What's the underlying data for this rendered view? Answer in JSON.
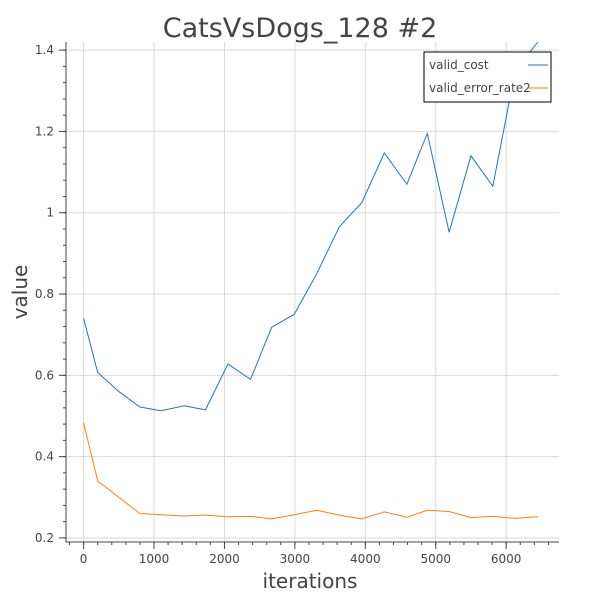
{
  "chart_data": {
    "type": "line",
    "title": "CatsVsDogs_128 #2",
    "xlabel": "iterations",
    "ylabel": "value",
    "xlim": [
      -250,
      6750
    ],
    "ylim": [
      0.19,
      1.42
    ],
    "x_ticks": [
      0,
      1000,
      2000,
      3000,
      4000,
      5000,
      6000
    ],
    "x_tick_labels": [
      "0",
      "1000",
      "2000",
      "3000",
      "4000",
      "5000",
      "6000"
    ],
    "y_ticks": [
      0.2,
      0.4,
      0.6,
      0.8,
      1.0,
      1.2,
      1.4
    ],
    "y_tick_labels": [
      "0.2",
      "0.4",
      "0.6",
      "0.8",
      "1",
      "1.2",
      "1.4"
    ],
    "grid": true,
    "legend_position": "top-right",
    "series": [
      {
        "name": "valid_cost",
        "color": "#1f77b4",
        "x": [
          0,
          200,
          500,
          800,
          1100,
          1430,
          1730,
          2050,
          2370,
          2670,
          2990,
          3310,
          3630,
          3950,
          4270,
          4590,
          4880,
          5190,
          5500,
          5810,
          6130,
          6450
        ],
        "y": [
          0.74,
          0.607,
          0.56,
          0.522,
          0.513,
          0.525,
          0.515,
          0.628,
          0.59,
          0.718,
          0.75,
          0.85,
          0.965,
          1.025,
          1.147,
          1.07,
          1.195,
          0.952,
          1.14,
          1.065,
          1.35,
          1.42
        ]
      },
      {
        "name": "valid_error_rate2",
        "color": "#ff7f0e",
        "x": [
          0,
          200,
          500,
          800,
          1100,
          1430,
          1730,
          2050,
          2370,
          2670,
          2990,
          3310,
          3630,
          3950,
          4270,
          4590,
          4880,
          5190,
          5500,
          5810,
          6130,
          6450
        ],
        "y": [
          0.483,
          0.34,
          0.3,
          0.26,
          0.257,
          0.254,
          0.256,
          0.252,
          0.253,
          0.247,
          0.257,
          0.268,
          0.256,
          0.247,
          0.264,
          0.251,
          0.268,
          0.265,
          0.25,
          0.253,
          0.248,
          0.252
        ]
      }
    ]
  }
}
